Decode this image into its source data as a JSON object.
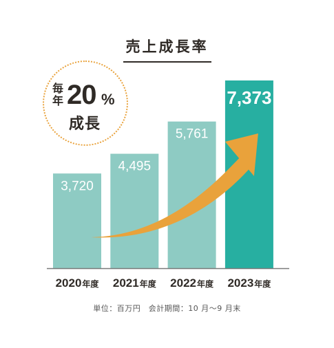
{
  "title": "売上成長率",
  "badge": {
    "prefix_top": "毎",
    "prefix_bottom": "年",
    "number": "20",
    "percent": "%",
    "suffix": "成長"
  },
  "footnote": "単位：百万円　会計期間：10 月〜9 月末",
  "colors": {
    "bar": "#8ecbc3",
    "bar_highlight": "#27afa1",
    "arrow": "#e9a23b",
    "badge_border": "#e9a23b",
    "text": "#2f2a26",
    "bar_label": "#ffffff",
    "baseline": "#7a7a7a"
  },
  "chart_data": {
    "type": "bar",
    "categories": [
      "2020年度",
      "2021年度",
      "2022年度",
      "2023年度"
    ],
    "values": [
      3720,
      4495,
      5761,
      7373
    ],
    "value_labels": [
      "3,720",
      "4,495",
      "5,761",
      "7,373"
    ],
    "highlight_index": 3,
    "title": "売上成長率",
    "xlabel": "",
    "ylabel": "",
    "ylim": [
      0,
      7373
    ],
    "grid": false,
    "legend": "none",
    "annotation": "growth-arrow"
  }
}
